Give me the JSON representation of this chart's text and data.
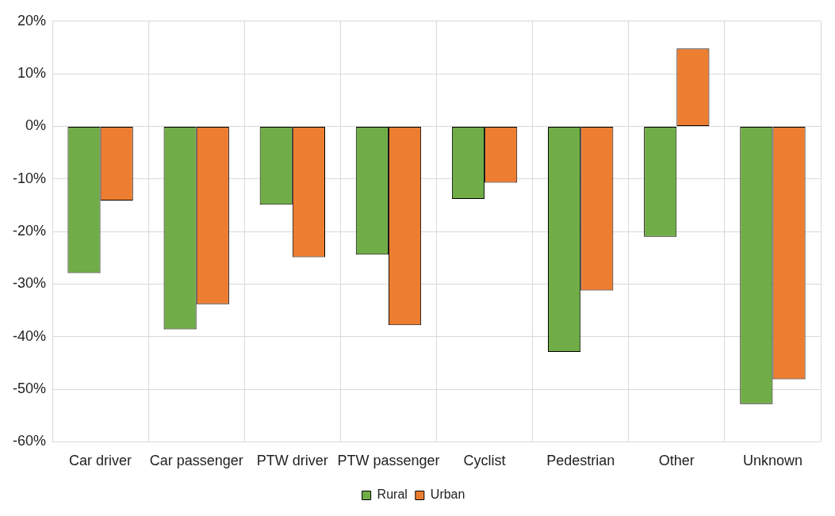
{
  "chart_data": {
    "type": "bar",
    "categories": [
      "Car driver",
      "Car passenger",
      "PTW driver",
      "PTW passenger",
      "Cyclist",
      "Pedestrian",
      "Other",
      "Unknown"
    ],
    "series": [
      {
        "name": "Rural",
        "color": "#70ad47",
        "values": [
          -27.9,
          -38.6,
          -14.9,
          -24.4,
          -13.8,
          -42.9,
          -21.0,
          -52.8
        ]
      },
      {
        "name": "Urban",
        "color": "#ed7d31",
        "values": [
          -14.1,
          -33.8,
          -24.9,
          -37.8,
          -10.7,
          -31.2,
          14.8,
          -48.1
        ]
      }
    ],
    "ylim": [
      -60,
      20
    ],
    "yticks": [
      {
        "value": -60,
        "label": "-60%"
      },
      {
        "value": -50,
        "label": "-50%"
      },
      {
        "value": -40,
        "label": "-40%"
      },
      {
        "value": -30,
        "label": "-30%"
      },
      {
        "value": -20,
        "label": "-20%"
      },
      {
        "value": -10,
        "label": "-10%"
      },
      {
        "value": 0,
        "label": "0%"
      },
      {
        "value": 10,
        "label": "10%"
      },
      {
        "value": 20,
        "label": "20%"
      }
    ],
    "grid": true,
    "legend": "bottom"
  }
}
